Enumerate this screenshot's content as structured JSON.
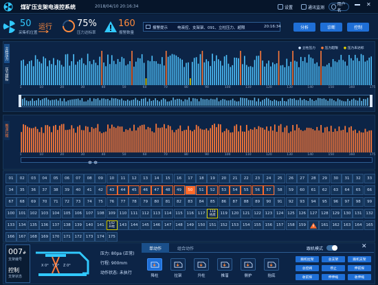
{
  "header": {
    "title": "煤矿压支架电液控系统",
    "datetime": "2018/04/10 20:16:34",
    "btn_settings": "设置",
    "btn_comm": "通讯监测",
    "btn_user": "用户名"
  },
  "status": {
    "collect_count": "50",
    "collect_label": "采集机位置",
    "run_text": "运行",
    "pressure_pct": "75%",
    "pressure_label": "压力达标率",
    "alarm_count": "160",
    "alarm_label": "报警数量",
    "notice_title": "报警提示",
    "notice_text": "电液控、支架架、091、立柱压力、超限",
    "notice_time": "20:16:34",
    "btn_analyze": "分析",
    "btn_diagnose": "诊断",
    "btn_control": "控制"
  },
  "chart_top": {
    "side_tab_1": "立柱压力",
    "side_tab_2": "压力超标",
    "legend": [
      "立柱压力",
      "压力超限",
      "压力未达标"
    ],
    "ticks": [
      "1",
      "10",
      "20",
      "30",
      "40",
      "50",
      "60",
      "70",
      "80",
      "90",
      "100",
      "110",
      "120",
      "130",
      "140",
      "150",
      "160",
      "175"
    ]
  },
  "chart_mid": {
    "side_tab": "推溜行程",
    "ticks": [
      "1",
      "10",
      "20",
      "30",
      "40",
      "50",
      "60",
      "70",
      "80",
      "90",
      "100",
      "110",
      "120",
      "130",
      "140",
      "150",
      "160",
      "175"
    ]
  },
  "chart_data": [
    {
      "type": "bar",
      "ylabel": "",
      "series": [
        {
          "name": "立柱压力",
          "color": "#4fc3ff"
        },
        {
          "name": "压力超限",
          "color": "#ff7a3a"
        },
        {
          "name": "压力未达标",
          "color": "#e4d200"
        }
      ],
      "count": 175
    },
    {
      "type": "bar",
      "ylabel": "",
      "series": [
        {
          "name": "推溜行程",
          "color": "#ff7a3a"
        }
      ],
      "count": 175
    }
  ],
  "grid": {
    "rows": [
      [
        "01",
        "02",
        "03",
        "04",
        "05",
        "06",
        "07",
        "08",
        "09",
        "10",
        "11",
        "12",
        "13",
        "14",
        "15",
        "16",
        "17",
        "18",
        "19",
        "20",
        "21",
        "22",
        "23",
        "24",
        "25",
        "26",
        "27",
        "28",
        "29",
        "30",
        "31",
        "32",
        "33"
      ],
      [
        "34",
        "35",
        "36",
        "37",
        "38",
        "39",
        "40",
        "41",
        "42",
        "43",
        "44",
        "45",
        "46",
        "47",
        "48",
        "49",
        "50",
        "51",
        "52",
        "53",
        "54",
        "55",
        "56",
        "57",
        "58",
        "59",
        "60",
        "61",
        "62",
        "63",
        "64",
        "65",
        "66"
      ],
      [
        "67",
        "68",
        "69",
        "70",
        "71",
        "72",
        "73",
        "74",
        "75",
        "76",
        "77",
        "78",
        "79",
        "80",
        "81",
        "82",
        "83",
        "84",
        "85",
        "86",
        "87",
        "88",
        "89",
        "90",
        "91",
        "92",
        "93",
        "94",
        "95",
        "96",
        "97",
        "98",
        "99"
      ],
      [
        "100",
        "101",
        "102",
        "103",
        "104",
        "105",
        "106",
        "107",
        "108",
        "109",
        "110",
        "111",
        "112",
        "113",
        "114",
        "115",
        "116",
        "117",
        "118",
        "119",
        "120",
        "121",
        "122",
        "123",
        "124",
        "125",
        "126",
        "127",
        "128",
        "129",
        "130",
        "131",
        "132"
      ],
      [
        "133",
        "134",
        "135",
        "136",
        "137",
        "138",
        "139",
        "140",
        "141",
        "142",
        "143",
        "144",
        "145",
        "146",
        "147",
        "148",
        "149",
        "150",
        "151",
        "152",
        "153",
        "154",
        "155",
        "156",
        "157",
        "158",
        "159",
        "160",
        "161",
        "162",
        "163",
        "164",
        "165"
      ],
      [
        "166",
        "167",
        "168",
        "169",
        "170",
        "171",
        "172",
        "173",
        "174",
        "175"
      ]
    ],
    "badge_a": "142\n升柱",
    "badge_b": "118\n抬底"
  },
  "bottom": {
    "support_num": "007",
    "support_unit": "#",
    "support_label": "支架编号",
    "ctrl_label": "控制",
    "ctrl_status": "支架状态",
    "pressure": "压力: 80pa (正常)",
    "stroke": "行程: 900mm",
    "action_status": "动作状态: 未执行",
    "tab_single": "单动作",
    "tab_combo": "组合动作",
    "follow_mode": "跟机模式",
    "actions": [
      "降柱",
      "拉架",
      "升柱",
      "推溜",
      "侧护",
      "抬底"
    ],
    "mini_btns": [
      "跟机拉架",
      "总支架",
      "跟机支架",
      "总控阀",
      "停止",
      "伸前探",
      "收前探",
      "伸伸缩",
      "收伸缩"
    ]
  }
}
